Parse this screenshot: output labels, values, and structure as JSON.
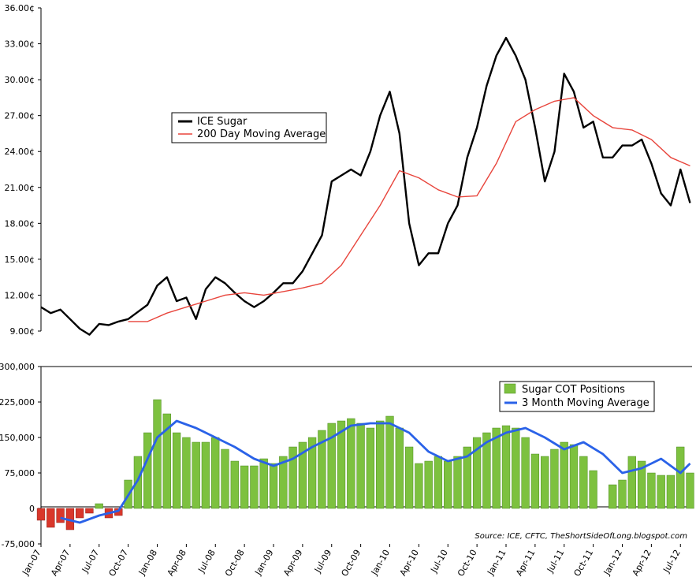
{
  "chart_data": [
    {
      "type": "line",
      "title": "",
      "y_unit": "¢",
      "y_ticks": [
        "9.00¢",
        "12.00¢",
        "15.00¢",
        "18.00¢",
        "21.00¢",
        "24.00¢",
        "27.00¢",
        "30.00¢",
        "33.00¢",
        "36.00¢"
      ],
      "ylim": [
        9,
        36
      ],
      "x_range": [
        "2007-01",
        "2012-08"
      ],
      "legend_placement": "upper-left",
      "series": [
        {
          "name": "ICE Sugar",
          "color": "#000000",
          "x": [
            "2007-01",
            "2007-02",
            "2007-03",
            "2007-04",
            "2007-05",
            "2007-06",
            "2007-07",
            "2007-08",
            "2007-09",
            "2007-10",
            "2007-11",
            "2007-12",
            "2008-01",
            "2008-02",
            "2008-03",
            "2008-04",
            "2008-05",
            "2008-06",
            "2008-07",
            "2008-08",
            "2008-09",
            "2008-10",
            "2008-11",
            "2008-12",
            "2009-01",
            "2009-02",
            "2009-03",
            "2009-04",
            "2009-05",
            "2009-06",
            "2009-07",
            "2009-08",
            "2009-09",
            "2009-10",
            "2009-11",
            "2009-12",
            "2010-01",
            "2010-02",
            "2010-03",
            "2010-04",
            "2010-05",
            "2010-06",
            "2010-07",
            "2010-08",
            "2010-09",
            "2010-10",
            "2010-11",
            "2010-12",
            "2011-01",
            "2011-02",
            "2011-03",
            "2011-04",
            "2011-05",
            "2011-06",
            "2011-07",
            "2011-08",
            "2011-09",
            "2011-10",
            "2011-11",
            "2011-12",
            "2012-01",
            "2012-02",
            "2012-03",
            "2012-04",
            "2012-05",
            "2012-06",
            "2012-07",
            "2012-08"
          ],
          "values": [
            11.0,
            10.5,
            10.8,
            10.0,
            9.2,
            8.7,
            9.6,
            9.5,
            9.8,
            10.0,
            10.6,
            11.2,
            12.8,
            13.5,
            11.5,
            11.8,
            10.0,
            12.5,
            13.5,
            13.0,
            12.2,
            11.5,
            11.0,
            11.5,
            12.2,
            13.0,
            13.0,
            14.0,
            15.5,
            17.0,
            21.5,
            22.0,
            22.5,
            22.0,
            24.0,
            27.0,
            29.0,
            25.5,
            18.0,
            14.5,
            15.5,
            15.5,
            18.0,
            19.5,
            23.5,
            26.0,
            29.5,
            32.0,
            33.5,
            32.0,
            30.0,
            26.0,
            21.5,
            24.0,
            30.5,
            29.0,
            26.0,
            26.5,
            23.5,
            23.5,
            24.5,
            24.5,
            25.0,
            23.0,
            20.5,
            19.5,
            22.5,
            19.7
          ]
        },
        {
          "name": "200 Day Moving Average",
          "color": "#e8453c",
          "x": [
            "2007-10",
            "2007-12",
            "2008-02",
            "2008-04",
            "2008-06",
            "2008-08",
            "2008-10",
            "2008-12",
            "2009-02",
            "2009-04",
            "2009-06",
            "2009-08",
            "2009-10",
            "2009-12",
            "2010-02",
            "2010-04",
            "2010-06",
            "2010-08",
            "2010-10",
            "2010-12",
            "2011-02",
            "2011-04",
            "2011-06",
            "2011-08",
            "2011-10",
            "2011-12",
            "2012-02",
            "2012-04",
            "2012-06",
            "2012-08"
          ],
          "values": [
            9.8,
            9.8,
            10.5,
            11.0,
            11.5,
            12.0,
            12.2,
            12.0,
            12.3,
            12.6,
            13.0,
            14.5,
            17.0,
            19.5,
            22.4,
            21.8,
            20.8,
            20.2,
            20.3,
            23.0,
            26.5,
            27.5,
            28.2,
            28.5,
            27.0,
            26.0,
            25.8,
            25.0,
            23.5,
            22.8
          ]
        }
      ]
    },
    {
      "type": "bar",
      "title": "",
      "y_ticks": [
        "-75,000",
        "0",
        "75,000",
        "150,000",
        "225,000",
        "300,000"
      ],
      "ylim": [
        -75000,
        300000
      ],
      "x_ticks": [
        "Jan-07",
        "Apr-07",
        "Jul-07",
        "Oct-07",
        "Jan-08",
        "Apr-08",
        "Jul-08",
        "Oct-08",
        "Jan-09",
        "Apr-09",
        "Jul-09",
        "Oct-09",
        "Jan-10",
        "Apr-10",
        "Jul-10",
        "Oct-10",
        "Jan-11",
        "Apr-11",
        "Jul-11",
        "Oct-11",
        "Jan-12",
        "Apr-12",
        "Jul-12"
      ],
      "legend_placement": "upper-right",
      "positive_color": "#7dc13f",
      "negative_color": "#d9372b",
      "series": [
        {
          "name": "Sugar COT Positions",
          "x": [
            "2007-01",
            "2007-02",
            "2007-03",
            "2007-04",
            "2007-05",
            "2007-06",
            "2007-07",
            "2007-08",
            "2007-09",
            "2007-10",
            "2007-11",
            "2007-12",
            "2008-01",
            "2008-02",
            "2008-03",
            "2008-04",
            "2008-05",
            "2008-06",
            "2008-07",
            "2008-08",
            "2008-09",
            "2008-10",
            "2008-11",
            "2008-12",
            "2009-01",
            "2009-02",
            "2009-03",
            "2009-04",
            "2009-05",
            "2009-06",
            "2009-07",
            "2009-08",
            "2009-09",
            "2009-10",
            "2009-11",
            "2009-12",
            "2010-01",
            "2010-02",
            "2010-03",
            "2010-04",
            "2010-05",
            "2010-06",
            "2010-07",
            "2010-08",
            "2010-09",
            "2010-10",
            "2010-11",
            "2010-12",
            "2011-01",
            "2011-02",
            "2011-03",
            "2011-04",
            "2011-05",
            "2011-06",
            "2011-07",
            "2011-08",
            "2011-09",
            "2011-10",
            "2011-12",
            "2012-01",
            "2012-02",
            "2012-03",
            "2012-04",
            "2012-05",
            "2012-06",
            "2012-07",
            "2012-08"
          ],
          "values": [
            -25000,
            -40000,
            -30000,
            -45000,
            -20000,
            -10000,
            10000,
            -20000,
            -15000,
            60000,
            110000,
            160000,
            230000,
            200000,
            160000,
            150000,
            140000,
            140000,
            150000,
            125000,
            100000,
            90000,
            90000,
            105000,
            95000,
            110000,
            130000,
            140000,
            150000,
            165000,
            180000,
            185000,
            190000,
            180000,
            170000,
            185000,
            195000,
            170000,
            130000,
            95000,
            100000,
            110000,
            100000,
            110000,
            130000,
            150000,
            160000,
            170000,
            175000,
            170000,
            150000,
            115000,
            110000,
            125000,
            140000,
            135000,
            110000,
            80000,
            50000,
            60000,
            110000,
            100000,
            75000,
            70000,
            70000,
            130000,
            75000
          ]
        },
        {
          "name": "3 Month Moving Average",
          "color": "#2a62e8",
          "x": [
            "2007-01",
            "2007-03",
            "2007-05",
            "2007-07",
            "2007-09",
            "2007-11",
            "2008-01",
            "2008-03",
            "2008-05",
            "2008-07",
            "2008-09",
            "2008-11",
            "2009-01",
            "2009-03",
            "2009-05",
            "2009-07",
            "2009-09",
            "2009-11",
            "2010-01",
            "2010-03",
            "2010-05",
            "2010-07",
            "2010-09",
            "2010-11",
            "2011-01",
            "2011-03",
            "2011-05",
            "2011-07",
            "2011-09",
            "2011-11",
            "2012-01",
            "2012-03",
            "2012-05",
            "2012-07",
            "2012-08"
          ],
          "values": [
            null,
            -20000,
            -30000,
            -15000,
            -5000,
            60000,
            150000,
            185000,
            170000,
            150000,
            130000,
            105000,
            90000,
            105000,
            130000,
            150000,
            175000,
            180000,
            180000,
            160000,
            120000,
            100000,
            110000,
            140000,
            160000,
            170000,
            150000,
            125000,
            140000,
            115000,
            75000,
            85000,
            105000,
            75000,
            95000
          ]
        }
      ]
    }
  ],
  "source": "Source: ICE, CFTC, TheShortSideOfLong.blogspot.com"
}
